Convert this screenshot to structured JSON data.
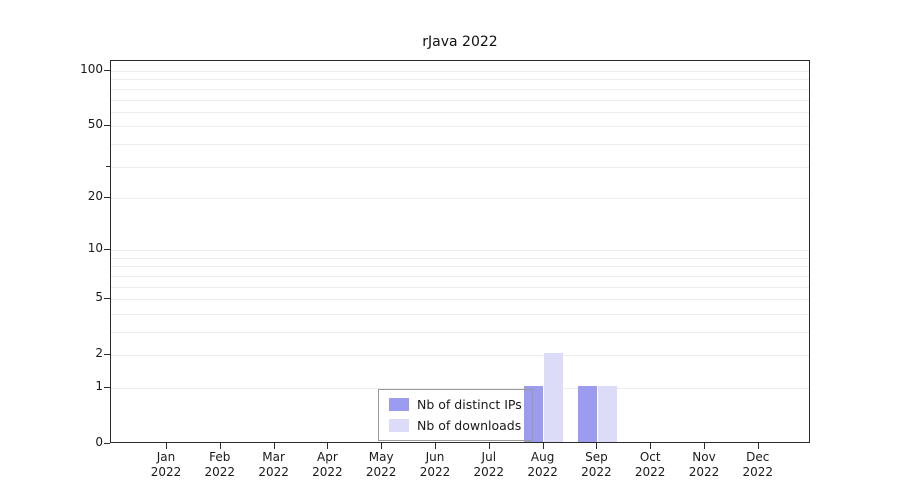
{
  "title": "rJava 2022",
  "legend": {
    "items": [
      {
        "label": "Nb of distinct IPs",
        "color": "#9b9bf0"
      },
      {
        "label": "Nb of downloads",
        "color": "#dcdcf8"
      }
    ]
  },
  "chart_data": {
    "type": "bar",
    "title": "rJava 2022",
    "categories": [
      "Jan 2022",
      "Feb 2022",
      "Mar 2022",
      "Apr 2022",
      "May 2022",
      "Jun 2022",
      "Jul 2022",
      "Aug 2022",
      "Sep 2022",
      "Oct 2022",
      "Nov 2022",
      "Dec 2022"
    ],
    "series": [
      {
        "name": "Nb of distinct IPs",
        "color": "#9b9bf0",
        "values": [
          0,
          0,
          0,
          0,
          0,
          0,
          0,
          1,
          1,
          0,
          0,
          0
        ]
      },
      {
        "name": "Nb of downloads",
        "color": "#dcdcf8",
        "values": [
          0,
          0,
          0,
          0,
          0,
          0,
          0,
          2,
          1,
          0,
          0,
          0
        ]
      }
    ],
    "yaxis": {
      "scale": "log1p",
      "labeled_ticks": [
        0,
        1,
        2,
        5,
        10,
        20,
        50,
        100
      ],
      "minor_ticks": [
        30
      ],
      "gridlines": [
        1,
        2,
        3,
        4,
        5,
        6,
        7,
        8,
        9,
        10,
        20,
        30,
        40,
        50,
        60,
        70,
        80,
        90,
        100
      ],
      "ylim": [
        0,
        100
      ]
    },
    "xlabel": "",
    "ylabel": "",
    "grid": true,
    "legend_position": "bottom-center-inside"
  }
}
